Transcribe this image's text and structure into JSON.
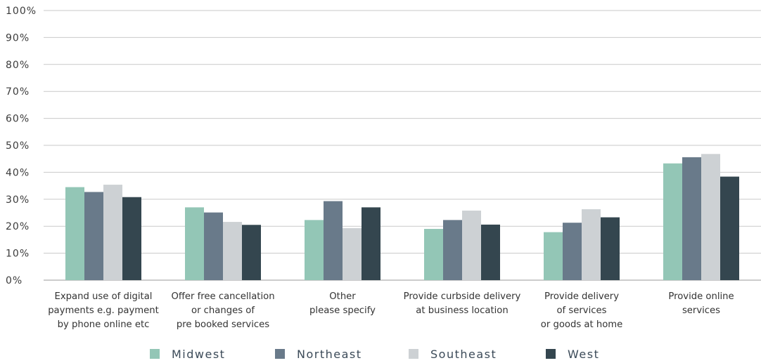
{
  "chart_data": {
    "type": "bar",
    "title": "",
    "xlabel": "",
    "ylabel": "",
    "ylim": [
      0,
      100
    ],
    "yticks": [
      "0%",
      "10%",
      "20%",
      "30%",
      "40%",
      "50%",
      "60%",
      "70%",
      "80%",
      "90%",
      "100%"
    ],
    "categories": [
      [
        "Expand use of digital",
        "payments e.g. payment",
        "by phone online etc"
      ],
      [
        "Offer free cancellation",
        "or changes of",
        "pre booked services"
      ],
      [
        "Other",
        "please specify"
      ],
      [
        "Provide curbside delivery",
        "at business location"
      ],
      [
        "Provide delivery",
        "of services",
        "or goods at home"
      ],
      [
        "Provide online",
        "services"
      ]
    ],
    "series": [
      {
        "name": "Midwest",
        "color": "#93c6b6",
        "values": [
          34.5,
          27.0,
          22.3,
          19.0,
          17.8,
          43.3
        ]
      },
      {
        "name": "Northeast",
        "color": "#697a8a",
        "values": [
          32.7,
          25.1,
          29.3,
          22.3,
          21.3,
          45.6
        ]
      },
      {
        "name": "Southeast",
        "color": "#cdd1d4",
        "values": [
          35.4,
          21.6,
          19.3,
          25.8,
          26.3,
          46.8
        ]
      },
      {
        "name": "West",
        "color": "#34464f",
        "values": [
          30.8,
          20.5,
          27.0,
          20.6,
          23.3,
          38.4
        ]
      }
    ],
    "grid": true,
    "legend": "bottom"
  }
}
